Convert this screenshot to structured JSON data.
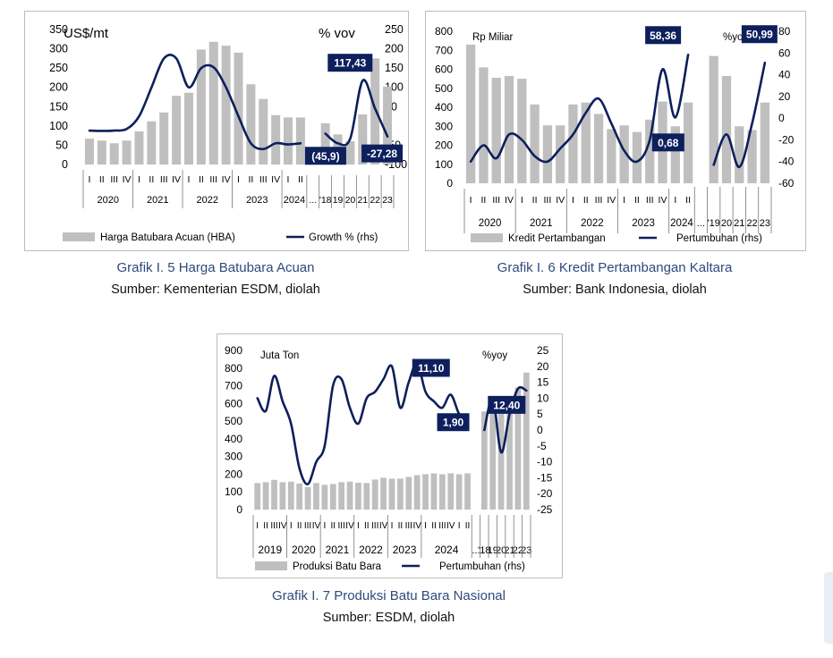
{
  "colors": {
    "bar": "#bfbfbf",
    "line": "#0d1f5c",
    "callout_bg": "#0d1f5c",
    "callout_text": "#ffffff",
    "caption": "#2e4a7d"
  },
  "charts": [
    {
      "caption_title": "Grafik I. 5 Harga Batubara Acuan",
      "caption_source": "Sumber: Kementerian ESDM, diolah",
      "chart_data": {
        "type": "bar",
        "unit_left": "US$/mt",
        "unit_right": "% vov",
        "y_left_ticks": [
          "350",
          "300",
          "250",
          "200",
          "150",
          "100",
          "50",
          "0"
        ],
        "y_left_lim": [
          0,
          350
        ],
        "y_right_ticks": [
          "250",
          "200",
          "150",
          "100",
          "50",
          "0",
          "-50",
          "-100"
        ],
        "y_right_lim": [
          -100,
          250
        ],
        "quarter_labels": [
          "I",
          "II",
          "III",
          "IV",
          "I",
          "II",
          "III",
          "IV",
          "I",
          "II",
          "III",
          "IV",
          "I",
          "II",
          "III",
          "IV",
          "I",
          "II"
        ],
        "year_labels": [
          "2020",
          "2021",
          "2022",
          "2023",
          "2024"
        ],
        "annual_labels": [
          "...",
          "'18",
          "19",
          "20",
          "21",
          "22",
          "23"
        ],
        "bar_series_name": "Harga Batubara Acuan (HBA)",
        "line_series_name": "Growth % (rhs)",
        "bars": [
          67,
          62,
          55,
          62,
          86,
          112,
          135,
          178,
          186,
          298,
          318,
          308,
          290,
          208,
          170,
          128,
          122,
          122,
          null,
          107,
          78,
          60,
          130,
          275,
          202
        ],
        "line": [
          -12,
          -13,
          -12,
          -8,
          25,
          100,
          175,
          175,
          100,
          150,
          152,
          100,
          25,
          -45,
          -60,
          -45,
          -48,
          -45,
          null,
          -20,
          -45,
          -33,
          117.43,
          45,
          -27.28
        ],
        "callouts": [
          "117,43",
          "(45,9)",
          "-27,28"
        ]
      }
    },
    {
      "caption_title": "Grafik I. 6 Kredit Pertambangan Kaltara",
      "caption_source": "Sumber: Bank Indonesia, diolah",
      "chart_data": {
        "type": "bar",
        "unit_left": "Rp Miliar",
        "unit_right": "%yoy",
        "y_left_ticks": [
          "800",
          "700",
          "600",
          "500",
          "400",
          "300",
          "200",
          "100",
          "0"
        ],
        "y_left_lim": [
          0,
          800
        ],
        "y_right_ticks": [
          "80",
          "60",
          "40",
          "20",
          "0",
          "-20",
          "-40",
          "-60"
        ],
        "y_right_lim": [
          -60,
          80
        ],
        "quarter_labels": [
          "I",
          "II",
          "III",
          "IV",
          "I",
          "II",
          "III",
          "IV",
          "I",
          "II",
          "III",
          "IV",
          "I",
          "II",
          "III",
          "IV",
          "I",
          "II"
        ],
        "year_labels": [
          "2020",
          "2021",
          "2022",
          "2023",
          "2024"
        ],
        "annual_labels": [
          "...",
          "'19",
          "20",
          "21",
          "22",
          "23"
        ],
        "bar_series_name": "Kredit Pertambangan",
        "line_series_name": "Pertumbuhan (rhs)",
        "bars": [
          730,
          610,
          555,
          565,
          550,
          415,
          305,
          305,
          415,
          425,
          365,
          285,
          305,
          270,
          335,
          430,
          300,
          425,
          null,
          670,
          565,
          300,
          280,
          425
        ],
        "line": [
          -40,
          -25,
          -37,
          -15,
          -20,
          -35,
          -40,
          -28,
          -15,
          5,
          18,
          -5,
          -30,
          -40,
          -20,
          45,
          0.68,
          58.36,
          null,
          -43,
          -15,
          -45,
          -5,
          50.99
        ],
        "callouts": [
          "58,36",
          "0,68",
          "50,99"
        ]
      }
    },
    {
      "caption_title": "Grafik I. 7 Produksi Batu Bara Nasional",
      "caption_source": "Sumber: ESDM, diolah",
      "chart_data": {
        "type": "bar",
        "unit_left": "Juta Ton",
        "unit_right": "%yoy",
        "y_left_ticks": [
          "900",
          "800",
          "700",
          "600",
          "500",
          "400",
          "300",
          "200",
          "100",
          "0"
        ],
        "y_left_lim": [
          0,
          900
        ],
        "y_right_ticks": [
          "25",
          "20",
          "15",
          "10",
          "5",
          "0",
          "-5",
          "-10",
          "-15",
          "-20",
          "-25"
        ],
        "y_right_lim": [
          -25,
          25
        ],
        "quarter_labels": [
          "I",
          "II",
          "III",
          "IV",
          "I",
          "II",
          "III",
          "IV",
          "I",
          "II",
          "III",
          "IV",
          "I",
          "II",
          "III",
          "IV",
          "I",
          "II",
          "III",
          "IV",
          "I",
          "II",
          "III",
          "IV",
          "I",
          "II"
        ],
        "year_labels": [
          "2019",
          "2020",
          "2021",
          "2022",
          "2023",
          "2024"
        ],
        "annual_labels": [
          "...",
          "'18",
          "19",
          "20",
          "21",
          "22",
          "23"
        ],
        "bar_series_name": "Produksi Batu Bara",
        "line_series_name": "Pertumbuhan (rhs)",
        "bars": [
          150,
          155,
          168,
          155,
          158,
          148,
          128,
          150,
          140,
          145,
          155,
          158,
          152,
          150,
          170,
          180,
          175,
          175,
          185,
          195,
          200,
          205,
          200,
          205,
          200,
          205,
          null,
          555,
          615,
          565,
          610,
          690,
          775
        ],
        "line": [
          10,
          6,
          17,
          9,
          2,
          -12,
          -17,
          -10,
          -5,
          14,
          16,
          7,
          2,
          10,
          12,
          16,
          20,
          7,
          15,
          21,
          12,
          9,
          7,
          11.1,
          5,
          1.9,
          null,
          0,
          10,
          -7,
          5,
          13,
          12.4
        ],
        "callouts": [
          "11,10",
          "1,90",
          "12,40"
        ]
      }
    }
  ]
}
